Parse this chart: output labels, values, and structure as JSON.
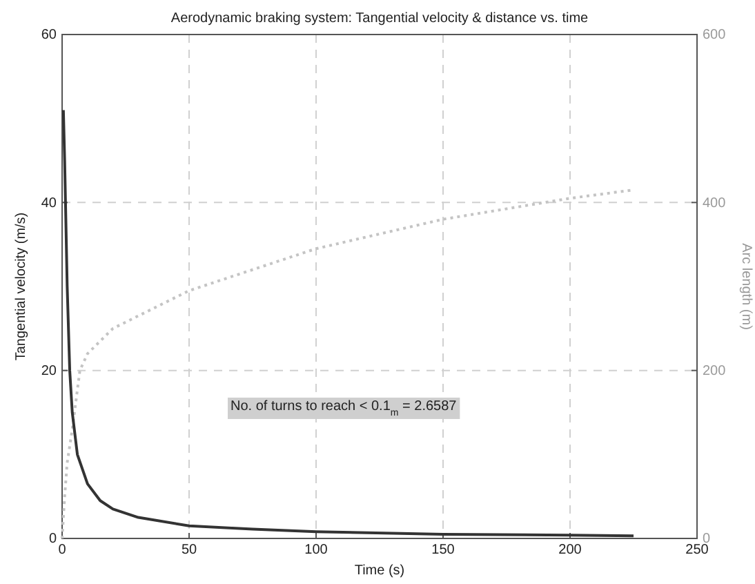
{
  "chart_data": {
    "type": "line",
    "title": "Aerodynamic braking system: Tangential velocity & distance vs. time",
    "xlabel": "Time (s)",
    "ylabel": "Tangential velocity (m/s)",
    "y2label": "Arc length (m)",
    "xlim": [
      0,
      250
    ],
    "xticks": [
      0,
      50,
      100,
      150,
      200,
      250
    ],
    "ylim": [
      0,
      60
    ],
    "yticks": [
      0,
      20,
      40,
      60
    ],
    "y2lim": [
      0,
      600
    ],
    "y2ticks": [
      0,
      200,
      400,
      600
    ],
    "grid": true,
    "series": [
      {
        "color": "#333333",
        "line_style": "solid",
        "x": [
          0.5,
          1,
          2,
          3,
          4,
          6,
          10,
          15,
          20,
          30,
          50,
          75,
          100,
          150,
          200,
          225
        ],
        "values": [
          51,
          45,
          30,
          20,
          15,
          10,
          6.5,
          4.5,
          3.5,
          2.5,
          1.5,
          1.1,
          0.8,
          0.5,
          0.4,
          0.3
        ]
      },
      {
        "color": "#c4c4c4",
        "line_style": "dotted",
        "axis": "y2",
        "x": [
          0,
          1,
          2,
          4,
          7,
          10,
          20,
          50,
          100,
          150,
          200,
          225
        ],
        "values": [
          0,
          50,
          90,
          130,
          200,
          220,
          250,
          295,
          345,
          380,
          405,
          415
        ]
      }
    ],
    "annotations": [
      "No. of turns to reach < 0.1$_{m}$ = 2.6587"
    ]
  }
}
